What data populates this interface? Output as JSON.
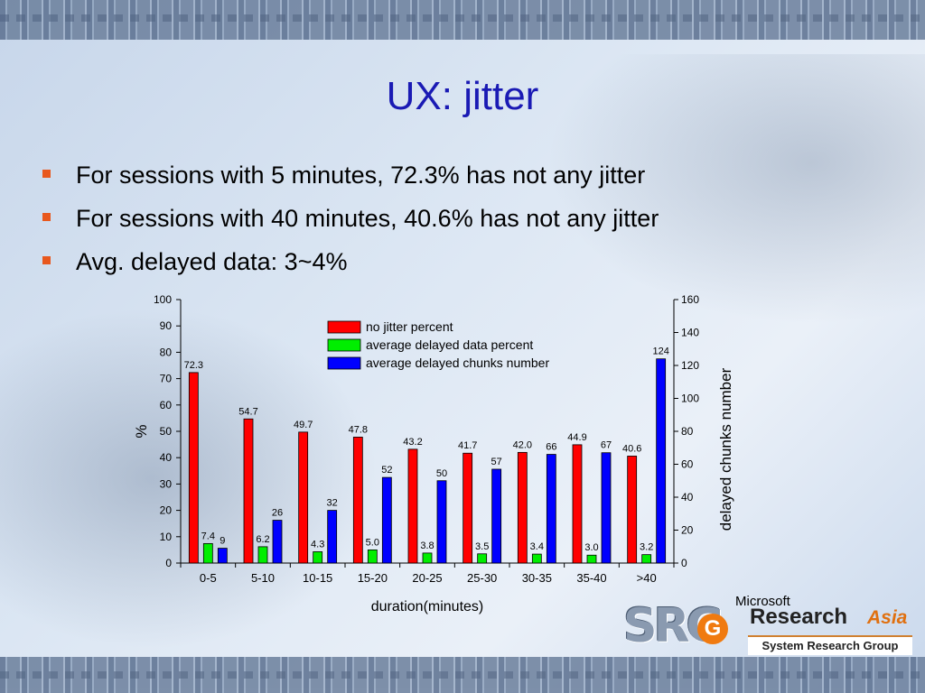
{
  "slide": {
    "title": "UX: jitter",
    "bullets": [
      "For sessions with 5 minutes, 72.3% has not any jitter",
      "For sessions with 40 minutes, 40.6% has not any jitter",
      "Avg. delayed data: 3~4%"
    ],
    "bullet_color": "#e8581e",
    "title_color": "#1a1ab4"
  },
  "logo": {
    "mark": "SRG",
    "microsoft": "Microsoft",
    "research": "Research",
    "asia": "Asia",
    "group": "System Research Group"
  },
  "chart_data": {
    "type": "bar",
    "xlabel": "duration(minutes)",
    "ylabel": "%",
    "y2label": "delayed chunks number",
    "categories": [
      "0-5",
      "5-10",
      "10-15",
      "15-20",
      "20-25",
      "25-30",
      "30-35",
      "35-40",
      ">40"
    ],
    "ylim": [
      0,
      100
    ],
    "y2lim": [
      0,
      160
    ],
    "yticks": [
      0,
      10,
      20,
      30,
      40,
      50,
      60,
      70,
      80,
      90,
      100
    ],
    "y2ticks": [
      0,
      20,
      40,
      60,
      80,
      100,
      120,
      140,
      160
    ],
    "legend_position": "top-right",
    "series": [
      {
        "name": "no jitter percent",
        "axis": "left",
        "color": "#ff0000",
        "values": [
          72.3,
          54.7,
          49.7,
          47.8,
          43.2,
          41.7,
          42.0,
          44.9,
          40.6
        ],
        "labels": [
          "72.3",
          "54.7",
          "49.7",
          "47.8",
          "43.2",
          "41.7",
          "42.0",
          "44.9",
          "40.6"
        ]
      },
      {
        "name": "average delayed data percent",
        "axis": "left",
        "color": "#00ee00",
        "values": [
          7.4,
          6.2,
          4.3,
          5.0,
          3.8,
          3.5,
          3.4,
          3.0,
          3.2
        ],
        "labels": [
          "7.4",
          "6.2",
          "4.3",
          "5.0",
          "3.8",
          "3.5",
          "3.4",
          "3.0",
          "3.2"
        ]
      },
      {
        "name": "average delayed chunks number",
        "axis": "right",
        "color": "#0000ff",
        "values": [
          9,
          26,
          32,
          52,
          50,
          57,
          66,
          67,
          124
        ],
        "labels": [
          "9",
          "26",
          "32",
          "52",
          "50",
          "57",
          "66",
          "67",
          "124"
        ]
      }
    ]
  }
}
